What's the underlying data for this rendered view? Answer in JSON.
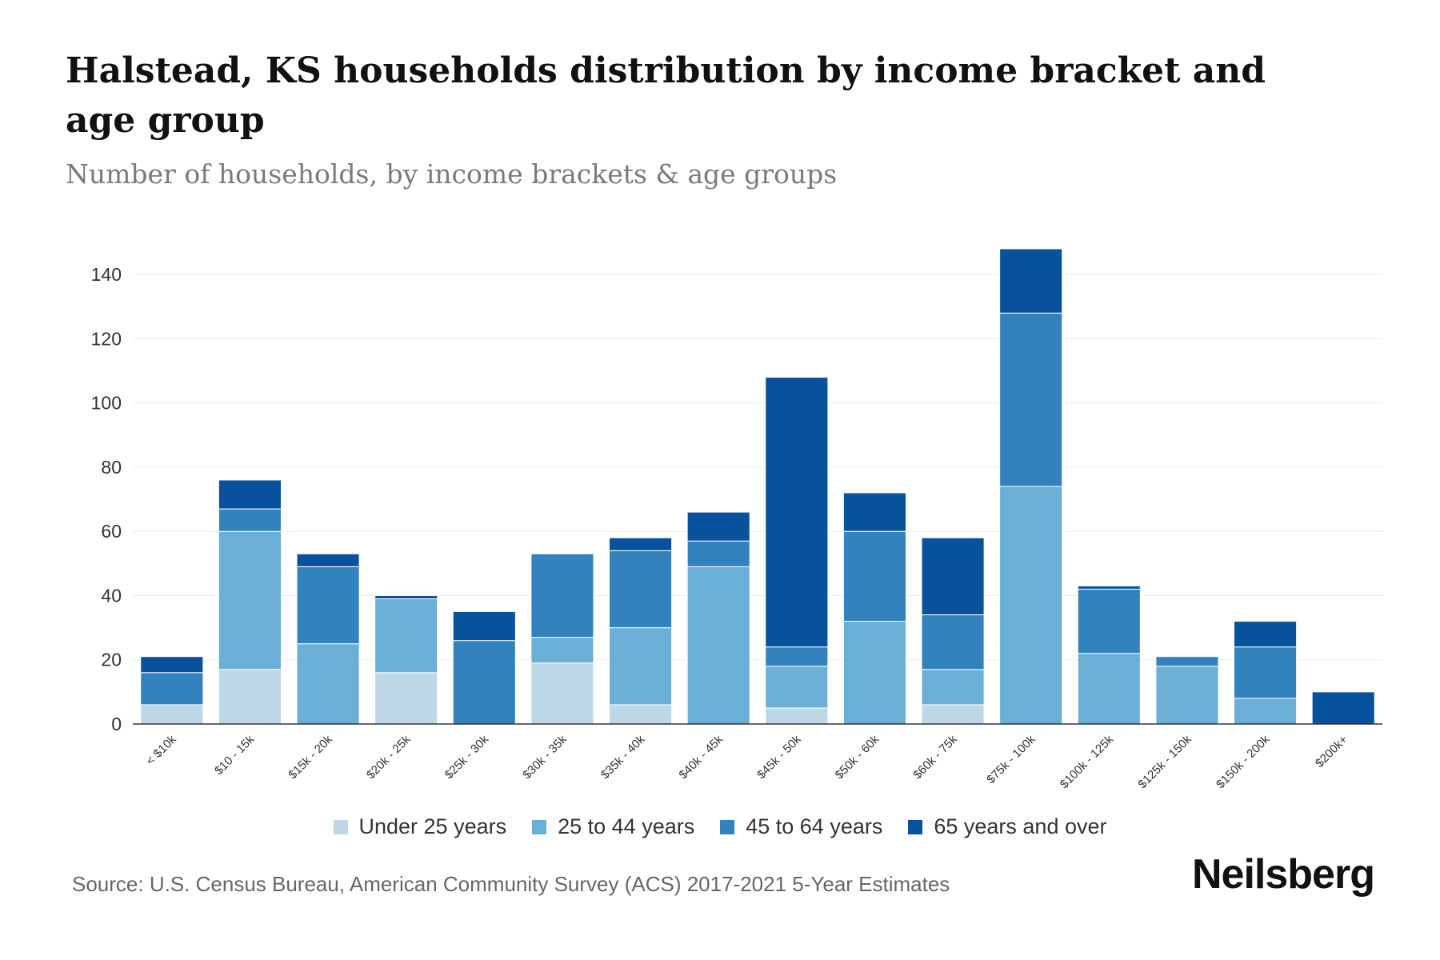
{
  "chart_data": {
    "type": "bar",
    "stacked": true,
    "title": "Halstead, KS households distribution by income bracket and age group",
    "subtitle": "Number of households, by income brackets & age groups",
    "xlabel": "",
    "ylabel": "",
    "ylim": [
      0,
      150
    ],
    "yticks": [
      0,
      20,
      40,
      60,
      80,
      100,
      120,
      140
    ],
    "categories": [
      "< $10k",
      "$10 - 15k",
      "$15k - 20k",
      "$20k - 25k",
      "$25k - 30k",
      "$30k - 35k",
      "$35k - 40k",
      "$40k - 45k",
      "$45k - 50k",
      "$50k - 60k",
      "$60k - 75k",
      "$75k - 100k",
      "$100k - 125k",
      "$125k - 150k",
      "$150k - 200k",
      "$200k+"
    ],
    "series": [
      {
        "name": "Under 25 years",
        "color": "#bdd7e7",
        "values": [
          6,
          17,
          0,
          16,
          0,
          19,
          6,
          0,
          5,
          0,
          6,
          0,
          0,
          0,
          0,
          0
        ]
      },
      {
        "name": "25 to 44 years",
        "color": "#6baed6",
        "values": [
          0,
          43,
          25,
          23,
          0,
          8,
          24,
          49,
          13,
          32,
          11,
          74,
          22,
          18,
          8,
          0
        ]
      },
      {
        "name": "45 to 64 years",
        "color": "#3182bd",
        "values": [
          10,
          7,
          24,
          0,
          26,
          26,
          24,
          8,
          6,
          28,
          17,
          54,
          20,
          3,
          16,
          0
        ]
      },
      {
        "name": "65 years and over",
        "color": "#08519c",
        "values": [
          5,
          9,
          4,
          1,
          9,
          0,
          4,
          9,
          84,
          12,
          24,
          20,
          1,
          0,
          8,
          10
        ]
      }
    ],
    "legend_position": "bottom",
    "grid": true
  },
  "footer": {
    "source": "Source: U.S. Census Bureau, American Community Survey (ACS) 2017-2021 5-Year Estimates",
    "logo_text": "Neilsberg"
  }
}
